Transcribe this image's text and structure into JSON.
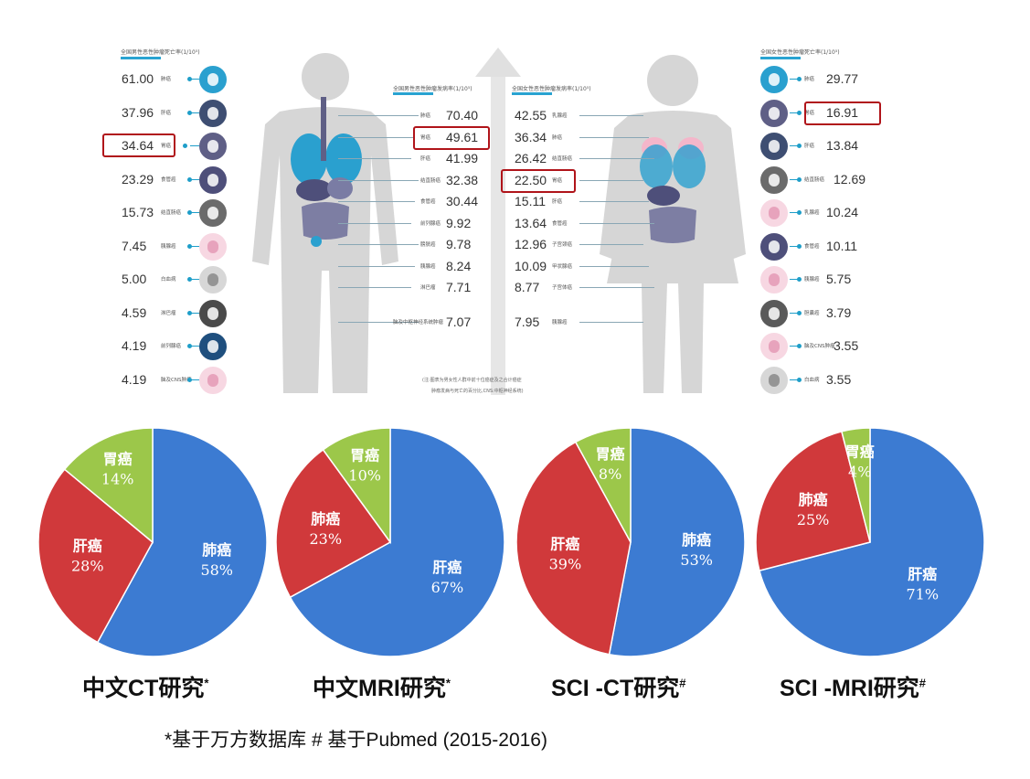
{
  "infographic": {
    "male_mortality": {
      "title": "全国男性恶性肿瘤死亡率(1/10⁵)",
      "items": [
        {
          "value": "61.00",
          "label": "肺癌",
          "icon": "lung-icon",
          "highlight": false
        },
        {
          "value": "37.96",
          "label": "肝癌",
          "icon": "liver-icon",
          "highlight": false
        },
        {
          "value": "34.64",
          "label": "胃癌",
          "icon": "stomach-icon",
          "highlight": true
        },
        {
          "value": "23.29",
          "label": "食管癌",
          "icon": "esophagus-icon",
          "highlight": false
        },
        {
          "value": "15.73",
          "label": "结直肠癌",
          "icon": "colon-icon",
          "highlight": false
        },
        {
          "value": "7.45",
          "label": "胰腺癌",
          "icon": "pancreas-icon",
          "highlight": false
        },
        {
          "value": "5.00",
          "label": "白血病",
          "icon": "leukemia-icon",
          "highlight": false
        },
        {
          "value": "4.59",
          "label": "淋巴瘤",
          "icon": "lymphoma-icon",
          "highlight": false
        },
        {
          "value": "4.19",
          "label": "前列腺癌",
          "icon": "prostate-icon",
          "highlight": false
        },
        {
          "value": "4.19",
          "label": "脑及CNS肿瘤",
          "icon": "brain-icon",
          "highlight": false
        }
      ]
    },
    "male_incidence": {
      "title": "全国男性恶性肿瘤发病率(1/10⁵)",
      "items": [
        {
          "value": "70.40",
          "label": "肺癌",
          "highlight": false
        },
        {
          "value": "49.61",
          "label": "胃癌",
          "highlight": true
        },
        {
          "value": "41.99",
          "label": "肝癌",
          "highlight": false
        },
        {
          "value": "32.38",
          "label": "结直肠癌",
          "highlight": false
        },
        {
          "value": "30.44",
          "label": "食管癌",
          "highlight": false
        },
        {
          "value": "9.92",
          "label": "前列腺癌",
          "highlight": false
        },
        {
          "value": "9.78",
          "label": "膀胱癌",
          "highlight": false
        },
        {
          "value": "8.24",
          "label": "胰腺癌",
          "highlight": false
        },
        {
          "value": "7.71",
          "label": "淋巴瘤",
          "highlight": false
        },
        {
          "value": "7.07",
          "label": "脑及中枢神经系统肿瘤",
          "highlight": false
        }
      ]
    },
    "female_incidence": {
      "title": "全国女性恶性肿瘤发病率(1/10⁵)",
      "items": [
        {
          "value": "42.55",
          "label": "乳腺癌",
          "highlight": false
        },
        {
          "value": "36.34",
          "label": "肺癌",
          "highlight": false
        },
        {
          "value": "26.42",
          "label": "结直肠癌",
          "highlight": false
        },
        {
          "value": "22.50",
          "label": "胃癌",
          "highlight": true
        },
        {
          "value": "15.11",
          "label": "肝癌",
          "highlight": false
        },
        {
          "value": "13.64",
          "label": "食管癌",
          "highlight": false
        },
        {
          "value": "12.96",
          "label": "子宫颈癌",
          "highlight": false
        },
        {
          "value": "10.09",
          "label": "甲状腺癌",
          "highlight": false
        },
        {
          "value": "8.77",
          "label": "子宫体癌",
          "highlight": false
        },
        {
          "value": "7.95",
          "label": "胰腺癌",
          "highlight": false
        }
      ]
    },
    "female_mortality": {
      "title": "全国女性恶性肿瘤死亡率(1/10⁵)",
      "items": [
        {
          "value": "29.77",
          "label": "肺癌",
          "icon": "lung-icon",
          "highlight": false
        },
        {
          "value": "16.91",
          "label": "胃癌",
          "icon": "stomach-icon",
          "highlight": true
        },
        {
          "value": "13.84",
          "label": "肝癌",
          "icon": "liver-icon",
          "highlight": false
        },
        {
          "value": "12.69",
          "label": "结直肠癌",
          "icon": "colon-icon",
          "highlight": false
        },
        {
          "value": "10.24",
          "label": "乳腺癌",
          "icon": "breast-icon",
          "highlight": false
        },
        {
          "value": "10.11",
          "label": "食管癌",
          "icon": "esophagus-icon",
          "highlight": false
        },
        {
          "value": "5.75",
          "label": "胰腺癌",
          "icon": "pancreas-icon",
          "highlight": false
        },
        {
          "value": "3.79",
          "label": "胆囊癌",
          "icon": "gallbladder-icon",
          "highlight": false
        },
        {
          "value": "3.55",
          "label": "脑及CNS肿瘤",
          "icon": "brain-icon",
          "highlight": false
        },
        {
          "value": "3.55",
          "label": "白血病",
          "icon": "leukemia-icon",
          "highlight": false
        }
      ]
    },
    "note_line1": "(注:图表为男女性人群中前十位癌症及之合计癌症",
    "note_line2": "肿瘤发病与死亡的百分比,CNS:中枢神经系统)"
  },
  "chart_data": [
    {
      "type": "pie",
      "caption": "中文CT研究",
      "mark": "*",
      "slices": [
        {
          "name": "肺癌",
          "value": 58,
          "label": "58%",
          "color": "#3c7bd2"
        },
        {
          "name": "肝癌",
          "value": 28,
          "label": "28%",
          "color": "#d0393b"
        },
        {
          "name": "胃癌",
          "value": 14,
          "label": "14%",
          "color": "#9cc74a"
        }
      ]
    },
    {
      "type": "pie",
      "caption": "中文MRI研究",
      "mark": "*",
      "slices": [
        {
          "name": "肝癌",
          "value": 67,
          "label": "67%",
          "color": "#3c7bd2"
        },
        {
          "name": "肺癌",
          "value": 23,
          "label": "23%",
          "color": "#d0393b"
        },
        {
          "name": "胃癌",
          "value": 10,
          "label": "10%",
          "color": "#9cc74a"
        }
      ]
    },
    {
      "type": "pie",
      "caption": "SCI -CT研究",
      "mark": "#",
      "slices": [
        {
          "name": "肺癌",
          "value": 53,
          "label": "53%",
          "color": "#3c7bd2"
        },
        {
          "name": "肝癌",
          "value": 39,
          "label": "39%",
          "color": "#d0393b"
        },
        {
          "name": "胃癌",
          "value": 8,
          "label": "8%",
          "color": "#9cc74a"
        }
      ]
    },
    {
      "type": "pie",
      "caption": "SCI -MRI研究",
      "mark": "#",
      "slices": [
        {
          "name": "肝癌",
          "value": 71,
          "label": "71%",
          "color": "#3c7bd2"
        },
        {
          "name": "肺癌",
          "value": 25,
          "label": "25%",
          "color": "#d0393b"
        },
        {
          "name": "胃癌",
          "value": 4,
          "label": "4%",
          "color": "#9cc74a"
        }
      ]
    }
  ],
  "footnote": "*基于万方数据库   # 基于Pubmed  (2015-2016)",
  "colors": {
    "accent": "#1e9ec9",
    "highlight": "#b0141a",
    "silhouette": "#d3d3d3"
  }
}
